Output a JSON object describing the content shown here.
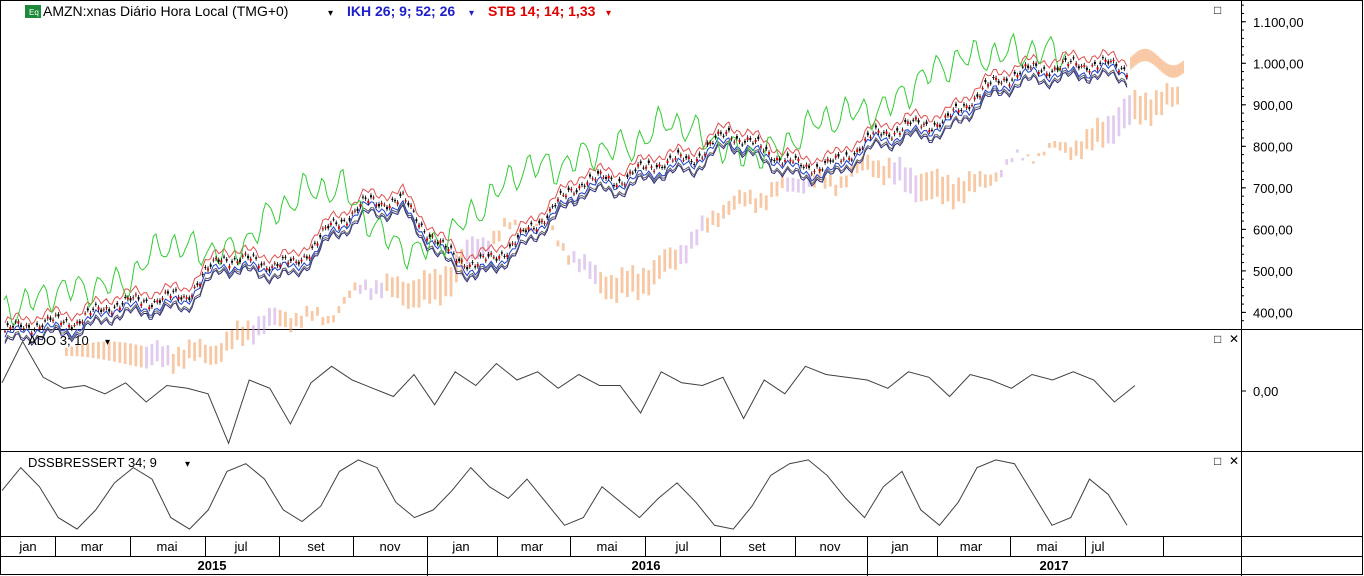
{
  "header": {
    "badge": "Eq",
    "symbol_title": "AMZN:xnas Diário Hora Local (TMG+0)",
    "ikh_label": "IKH 26; 9; 52; 26",
    "stb_label": "STB 14; 14; 1,33",
    "dropdown_glyph": "▾"
  },
  "panel_icons": {
    "maximize": "□",
    "close": "✕"
  },
  "colors": {
    "background": "#ffffff",
    "grid": "#000000",
    "price_up": "#e00000",
    "price_down": "#000000",
    "ikh_label": "#1f1fcc",
    "stb_label": "#e00000",
    "tenkan": "#1f3fcc",
    "kijun": "#2a2a80",
    "chikou": "#33cc33",
    "stb_upper": "#e05050",
    "stb_lower": "#606060",
    "kumo_up": "#f29a5a",
    "kumo_down": "#c8a0e0",
    "oscillator": "#404040"
  },
  "chart_data": [
    {
      "type": "candlestick",
      "name": "main",
      "ylim": [
        360,
        1150
      ],
      "yticks": [
        "1.100,00",
        "1.000,00",
        "900,00",
        "800,00",
        "700,00",
        "600,00",
        "500,00",
        "400,00"
      ],
      "ytick_values": [
        1100,
        1000,
        900,
        800,
        700,
        600,
        500,
        400
      ],
      "x": [
        "2015-01",
        "2015-02",
        "2015-03",
        "2015-04",
        "2015-05",
        "2015-06",
        "2015-07",
        "2015-08",
        "2015-09",
        "2015-10",
        "2015-11",
        "2015-12",
        "2016-01",
        "2016-02",
        "2016-03",
        "2016-04",
        "2016-05",
        "2016-06",
        "2016-07",
        "2016-08",
        "2016-09",
        "2016-10",
        "2016-11",
        "2016-12",
        "2017-01",
        "2017-02",
        "2017-03",
        "2017-04",
        "2017-05",
        "2017-06",
        "2017-07",
        "2017-08"
      ],
      "close": [
        355,
        375,
        380,
        420,
        430,
        440,
        535,
        520,
        515,
        605,
        665,
        670,
        560,
        510,
        560,
        640,
        720,
        720,
        760,
        770,
        835,
        790,
        750,
        760,
        825,
        850,
        860,
        935,
        980,
        990,
        1000,
        990
      ],
      "cloud_projection_x": [
        "2017-08",
        "2017-09",
        "2017-10"
      ],
      "cloud_projection_y": [
        990,
        1025,
        1000
      ]
    },
    {
      "type": "line",
      "name": "ADO",
      "title": "ADO 3; 10",
      "yticks": [
        "0,00"
      ],
      "ytick_values": [
        0
      ],
      "ylim": [
        -1,
        1
      ],
      "values": [
        0.15,
        0.9,
        0.25,
        0.05,
        0.1,
        -0.05,
        0.15,
        -0.2,
        0.1,
        0.05,
        -0.05,
        -0.95,
        0.2,
        0.05,
        -0.6,
        0.15,
        0.45,
        0.2,
        0.05,
        -0.1,
        0.3,
        -0.25,
        0.35,
        0.1,
        0.5,
        0.2,
        0.35,
        0.05,
        0.3,
        0.1,
        0.1,
        -0.4,
        0.35,
        0.15,
        0.1,
        0.25,
        -0.5,
        0.2,
        -0.05,
        0.45,
        0.3,
        0.25,
        0.2,
        0.05,
        0.35,
        0.25,
        -0.1,
        0.3,
        0.2,
        0.05,
        0.3,
        0.2,
        0.35,
        0.2,
        -0.2,
        0.1
      ]
    },
    {
      "type": "line",
      "name": "DSSBRESSERT",
      "title": "DSSBRESSERT 34; 9",
      "ylim": [
        0,
        100
      ],
      "values": [
        55,
        85,
        60,
        20,
        5,
        30,
        65,
        85,
        70,
        20,
        5,
        30,
        80,
        90,
        70,
        30,
        15,
        35,
        80,
        95,
        85,
        40,
        20,
        30,
        55,
        85,
        60,
        45,
        70,
        40,
        10,
        20,
        60,
        40,
        20,
        45,
        65,
        40,
        10,
        5,
        35,
        75,
        90,
        95,
        75,
        45,
        20,
        60,
        80,
        30,
        10,
        40,
        85,
        95,
        90,
        50,
        10,
        20,
        70,
        50,
        10
      ]
    }
  ],
  "xaxis": {
    "months": [
      "jan",
      "mar",
      "mai",
      "jul",
      "set",
      "nov",
      "jan",
      "mar",
      "mai",
      "jul",
      "set",
      "nov",
      "jan",
      "mar",
      "mai",
      "jul"
    ],
    "years": [
      "2015",
      "2016",
      "2017"
    ]
  }
}
